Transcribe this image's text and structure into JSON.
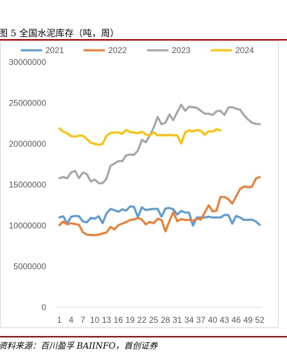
{
  "figure": {
    "title": "图 5 全国水泥库存（吨，周）",
    "source": "资料来源：百川盈孚 BAIINFO，首创证券"
  },
  "chart_data": {
    "type": "line",
    "ylim": [
      0,
      30000000
    ],
    "yticks": [
      0,
      5000000,
      10000000,
      15000000,
      20000000,
      25000000,
      30000000
    ],
    "xticks": [
      1,
      4,
      7,
      10,
      13,
      16,
      19,
      22,
      25,
      28,
      31,
      34,
      37,
      40,
      43,
      46,
      49,
      52
    ],
    "xlim": [
      1,
      52
    ],
    "grid": false,
    "legend": "top",
    "series": [
      {
        "name": "2021",
        "color": "#5b9bd5",
        "values": [
          11000000,
          11150000,
          10250000,
          11100000,
          11200000,
          11150000,
          10500000,
          10400000,
          10950000,
          10850000,
          11150000,
          10300000,
          11500000,
          12050000,
          11900000,
          11700000,
          12000000,
          11850000,
          12350000,
          12300000,
          11050000,
          12250000,
          11900000,
          12000000,
          12050000,
          12050000,
          11100000,
          12100000,
          12150000,
          12000000,
          11350000,
          11800000,
          11600000,
          11600000,
          10000000,
          11000000,
          11000000,
          11000000,
          11100000,
          11000000,
          11000000,
          11000000,
          11300000,
          11300000,
          10250000,
          11200000,
          11000000,
          10700000,
          10700000,
          10750000,
          10500000,
          10100000
        ]
      },
      {
        "name": "2022",
        "color": "#ed7d31",
        "values": [
          10050000,
          10500000,
          10150000,
          10300000,
          10200000,
          10100000,
          9200000,
          8900000,
          8850000,
          8850000,
          8900000,
          9050000,
          9150000,
          9850000,
          9550000,
          10050000,
          10250000,
          10450000,
          10700000,
          10750000,
          10950000,
          10750000,
          10150000,
          10450000,
          10300000,
          10850000,
          10700000,
          9300000,
          10550000,
          11650000,
          10550000,
          10800000,
          10700000,
          10700000,
          10600000,
          10850000,
          10750000,
          11600000,
          12500000,
          11750000,
          11850000,
          13500000,
          13500000,
          13250000,
          12700000,
          13600000,
          14500000,
          14800000,
          14700000,
          14750000,
          15750000,
          15950000
        ]
      },
      {
        "name": "2023",
        "color": "#a5a5a5",
        "values": [
          15800000,
          15950000,
          15800000,
          16500000,
          16700000,
          15800000,
          16500000,
          16300000,
          15400000,
          15650000,
          15200000,
          15200000,
          15750000,
          17300000,
          17600000,
          17900000,
          17900000,
          18600000,
          18700000,
          18650000,
          19200000,
          20500000,
          20200000,
          21000000,
          22000000,
          23300000,
          22400000,
          22600000,
          23600000,
          22900000,
          23900000,
          24800000,
          24050000,
          24550000,
          24500000,
          24400000,
          24050000,
          23700000,
          23700000,
          23550000,
          24000000,
          24050000,
          23550000,
          24450000,
          24500000,
          24300000,
          24200000,
          23500000,
          23000000,
          22600000,
          22450000,
          22400000
        ]
      },
      {
        "name": "2024",
        "color": "#ffc000",
        "values": [
          21900000,
          21500000,
          21300000,
          20950000,
          20900000,
          21000000,
          21000000,
          20600000,
          20150000,
          20000000,
          19900000,
          20000000,
          21000000,
          21350000,
          21400000,
          21400000,
          21250000,
          21700000,
          21450000,
          21400000,
          21300000,
          21500000,
          21150000,
          21050000,
          21400000,
          21050000,
          21100000,
          21050000,
          21100000,
          21050000,
          21050000,
          20050000,
          21400000,
          21650000,
          21550000,
          21700000,
          21600000,
          21100000,
          21550000,
          21500000,
          21800000,
          21650000
        ]
      }
    ]
  }
}
